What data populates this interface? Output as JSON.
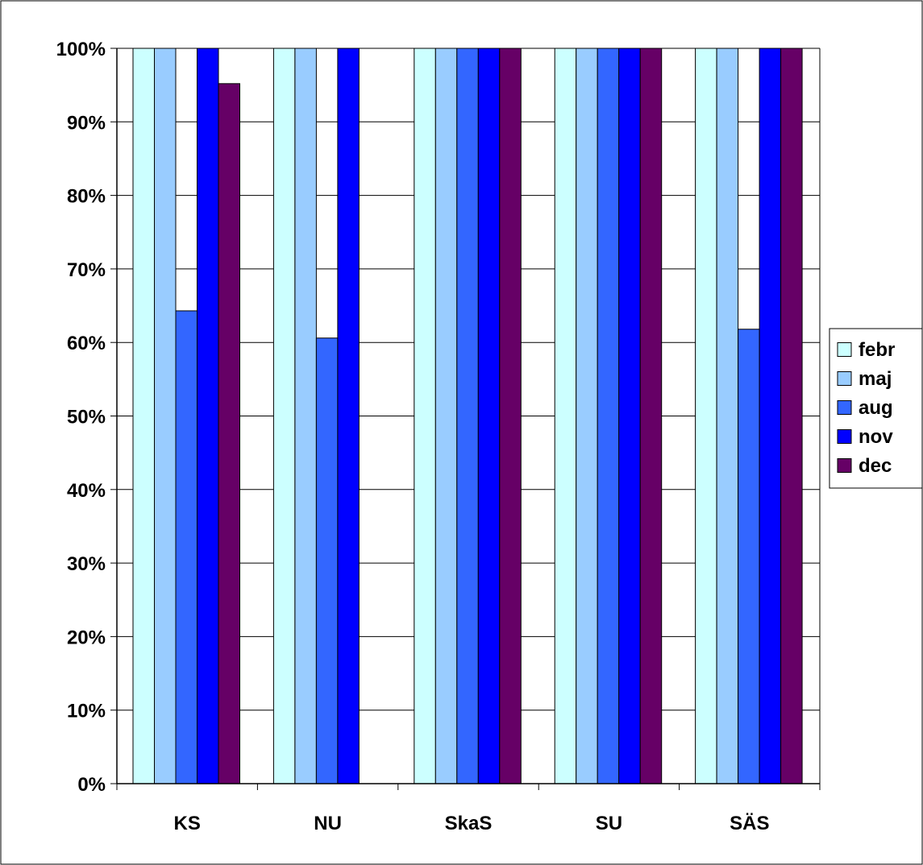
{
  "chart_data": {
    "type": "bar",
    "title": "",
    "xlabel": "",
    "ylabel": "",
    "categories": [
      "KS",
      "NU",
      "SkaS",
      "SU",
      "SÄS"
    ],
    "series": [
      {
        "name": "febr",
        "color": "#CCFFFF",
        "values": [
          100,
          100,
          100,
          100,
          100
        ]
      },
      {
        "name": "maj",
        "color": "#99CCFF",
        "values": [
          100,
          100,
          100,
          100,
          100
        ]
      },
      {
        "name": "aug",
        "color": "#3366FF",
        "values": [
          64.3,
          60.6,
          100,
          100,
          61.8
        ]
      },
      {
        "name": "nov",
        "color": "#0000FF",
        "values": [
          100,
          100,
          100,
          100,
          100
        ]
      },
      {
        "name": "dec",
        "color": "#660066",
        "values": [
          95.2,
          null,
          100,
          100,
          100
        ]
      }
    ],
    "ylim": [
      0,
      100
    ],
    "y_ticks": [
      0,
      10,
      20,
      30,
      40,
      50,
      60,
      70,
      80,
      90,
      100
    ],
    "y_tick_labels": [
      "0%",
      "10%",
      "20%",
      "30%",
      "40%",
      "50%",
      "60%",
      "70%",
      "80%",
      "90%",
      "100%"
    ],
    "grid": true,
    "legend": "right"
  }
}
